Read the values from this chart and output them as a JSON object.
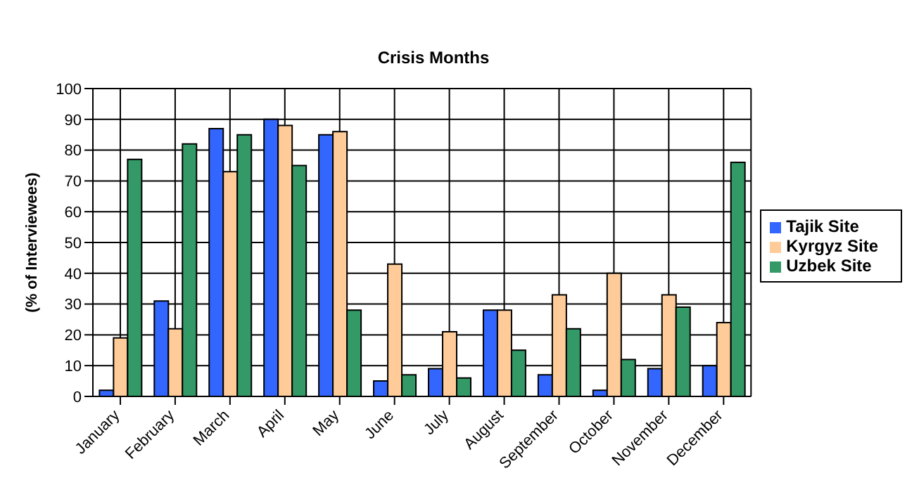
{
  "chart_data": {
    "type": "bar",
    "title": "Crisis Months",
    "ylabel": "(% of Interviewees)",
    "categories": [
      "January",
      "February",
      "March",
      "April",
      "May",
      "June",
      "July",
      "August",
      "September",
      "October",
      "November",
      "December"
    ],
    "series": [
      {
        "name": "Tajik Site",
        "color": "#3366ff",
        "values": [
          2,
          31,
          87,
          90,
          85,
          5,
          9,
          28,
          7,
          2,
          9,
          10
        ]
      },
      {
        "name": "Kyrgyz Site",
        "color": "#ffcc99",
        "values": [
          19,
          22,
          73,
          88,
          86,
          43,
          21,
          28,
          33,
          40,
          33,
          24
        ]
      },
      {
        "name": "Uzbek Site",
        "color": "#339966",
        "values": [
          77,
          82,
          85,
          75,
          28,
          7,
          6,
          15,
          22,
          12,
          29,
          76
        ]
      }
    ],
    "ylim": [
      0,
      100
    ],
    "yticks": [
      0,
      10,
      20,
      30,
      40,
      50,
      60,
      70,
      80,
      90,
      100
    ],
    "grid": true,
    "legend": "right"
  }
}
